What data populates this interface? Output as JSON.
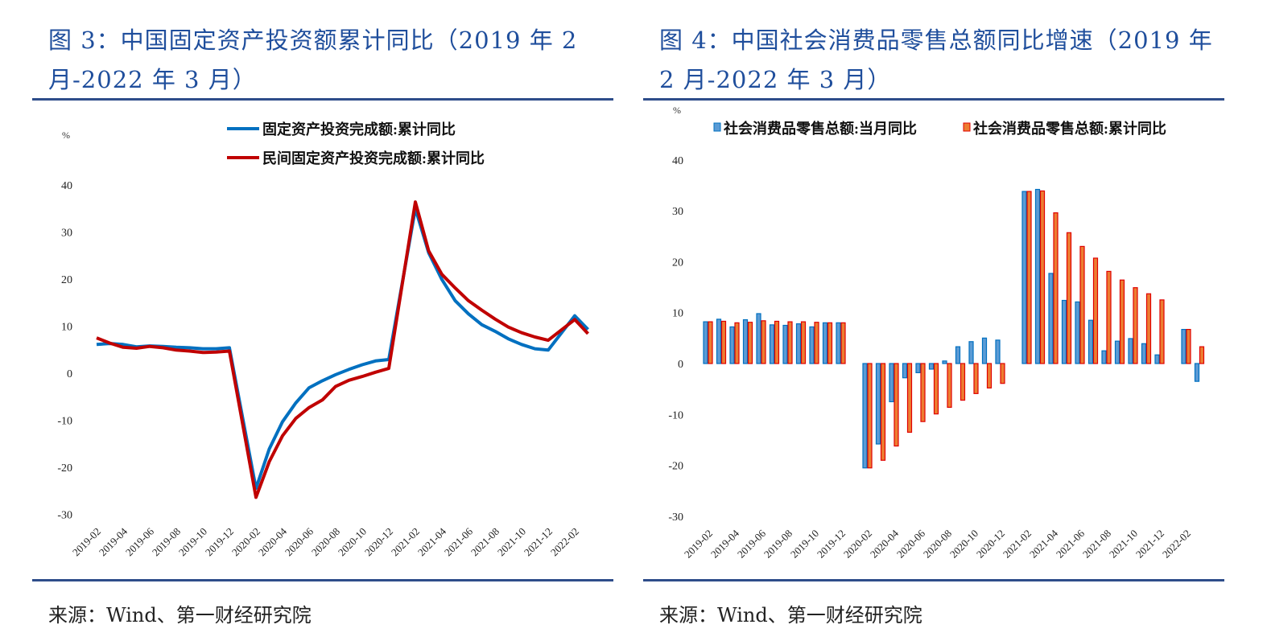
{
  "panels": [
    {
      "title": "图 3：中国固定资产投资额累计同比（2019 年 2 月-2022 年 3 月）",
      "source": "来源：Wind、第一财经研究院"
    },
    {
      "title": "图 4：中国社会消费品零售总额同比增速（2019 年 2 月-2022 年 3 月）",
      "source": "来源：Wind、第一财经研究院"
    }
  ],
  "chart_data": [
    {
      "type": "line",
      "ylabel": "%",
      "ylim": [
        -30,
        40
      ],
      "yticks": [
        40,
        30,
        20,
        10,
        0,
        -10,
        -20,
        -30
      ],
      "legend": "top",
      "x": [
        "2019-02",
        "2019-03",
        "2019-04",
        "2019-05",
        "2019-06",
        "2019-07",
        "2019-08",
        "2019-09",
        "2019-10",
        "2019-11",
        "2019-12",
        "2020-01",
        "2020-02",
        "2020-03",
        "2020-04",
        "2020-05",
        "2020-06",
        "2020-07",
        "2020-08",
        "2020-09",
        "2020-10",
        "2020-11",
        "2020-12",
        "2021-01",
        "2021-02",
        "2021-03",
        "2021-04",
        "2021-05",
        "2021-06",
        "2021-07",
        "2021-08",
        "2021-09",
        "2021-10",
        "2021-11",
        "2021-12",
        "2022-01",
        "2022-02",
        "2022-03"
      ],
      "xticks": [
        "2019-02",
        "2019-04",
        "2019-06",
        "2019-08",
        "2019-10",
        "2019-12",
        "2020-02",
        "2020-04",
        "2020-06",
        "2020-08",
        "2020-10",
        "2020-12",
        "2021-02",
        "2021-04",
        "2021-06",
        "2021-08",
        "2021-10",
        "2021-12",
        "2022-02"
      ],
      "series": [
        {
          "name": "固定资产投资完成额:累计同比",
          "color": "#0070c0",
          "values": [
            6.1,
            6.3,
            6.1,
            5.6,
            5.8,
            5.7,
            5.5,
            5.4,
            5.2,
            5.2,
            5.4,
            null,
            -24.5,
            -16.1,
            -10.3,
            -6.3,
            -3.1,
            -1.6,
            -0.3,
            0.8,
            1.8,
            2.6,
            2.9,
            null,
            35.0,
            25.6,
            19.9,
            15.4,
            12.6,
            10.3,
            8.9,
            7.3,
            6.1,
            5.2,
            4.9,
            null,
            12.2,
            9.3
          ]
        },
        {
          "name": "民间固定资产投资完成额:累计同比",
          "color": "#c00000",
          "values": [
            7.5,
            6.4,
            5.5,
            5.3,
            5.7,
            5.4,
            4.9,
            4.7,
            4.4,
            4.5,
            4.7,
            null,
            -26.4,
            -18.8,
            -13.3,
            -9.6,
            -7.3,
            -5.7,
            -2.8,
            -1.5,
            -0.7,
            0.2,
            1.0,
            null,
            36.4,
            26.0,
            21.0,
            18.1,
            15.4,
            13.4,
            11.5,
            9.8,
            8.6,
            7.7,
            7.0,
            null,
            11.4,
            8.4
          ]
        }
      ]
    },
    {
      "type": "bar",
      "ylabel": "%",
      "ylim": [
        -30,
        40
      ],
      "yticks": [
        40,
        30,
        20,
        10,
        0,
        -10,
        -20,
        -30
      ],
      "legend": "top",
      "x": [
        "2019-02",
        "2019-03",
        "2019-04",
        "2019-05",
        "2019-06",
        "2019-07",
        "2019-08",
        "2019-09",
        "2019-10",
        "2019-11",
        "2019-12",
        "2020-01",
        "2020-02",
        "2020-03",
        "2020-04",
        "2020-05",
        "2020-06",
        "2020-07",
        "2020-08",
        "2020-09",
        "2020-10",
        "2020-11",
        "2020-12",
        "2021-01",
        "2021-02",
        "2021-03",
        "2021-04",
        "2021-05",
        "2021-06",
        "2021-07",
        "2021-08",
        "2021-09",
        "2021-10",
        "2021-11",
        "2021-12",
        "2022-01",
        "2022-02",
        "2022-03"
      ],
      "xticks": [
        "2019-02",
        "2019-04",
        "2019-06",
        "2019-08",
        "2019-10",
        "2019-12",
        "2020-02",
        "2020-04",
        "2020-06",
        "2020-08",
        "2020-10",
        "2020-12",
        "2021-02",
        "2021-04",
        "2021-06",
        "2021-08",
        "2021-10",
        "2021-12",
        "2022-02"
      ],
      "series": [
        {
          "name": "社会消费品零售总额:当月同比",
          "color": "#5b9bd5",
          "edge": "#0070c0",
          "values": [
            8.2,
            8.7,
            7.2,
            8.6,
            9.8,
            7.6,
            7.5,
            7.8,
            7.2,
            8.0,
            8.0,
            null,
            -20.5,
            -15.8,
            -7.5,
            -2.8,
            -1.8,
            -1.1,
            0.5,
            3.3,
            4.3,
            5.0,
            4.6,
            null,
            33.8,
            34.2,
            17.7,
            12.4,
            12.1,
            8.5,
            2.5,
            4.4,
            4.9,
            3.9,
            1.7,
            null,
            6.7,
            -3.5
          ]
        },
        {
          "name": "社会消费品零售总额:累计同比",
          "color": "#ed7d31",
          "edge": "#e00000",
          "values": [
            8.2,
            8.3,
            8.0,
            8.1,
            8.4,
            8.3,
            8.2,
            8.2,
            8.1,
            8.0,
            8.0,
            null,
            -20.5,
            -19.0,
            -16.2,
            -13.5,
            -11.4,
            -9.9,
            -8.6,
            -7.2,
            -5.9,
            -4.8,
            -3.9,
            null,
            33.8,
            33.9,
            29.6,
            25.7,
            23.0,
            20.7,
            18.1,
            16.4,
            14.9,
            13.7,
            12.5,
            null,
            6.7,
            3.3
          ]
        }
      ]
    }
  ]
}
